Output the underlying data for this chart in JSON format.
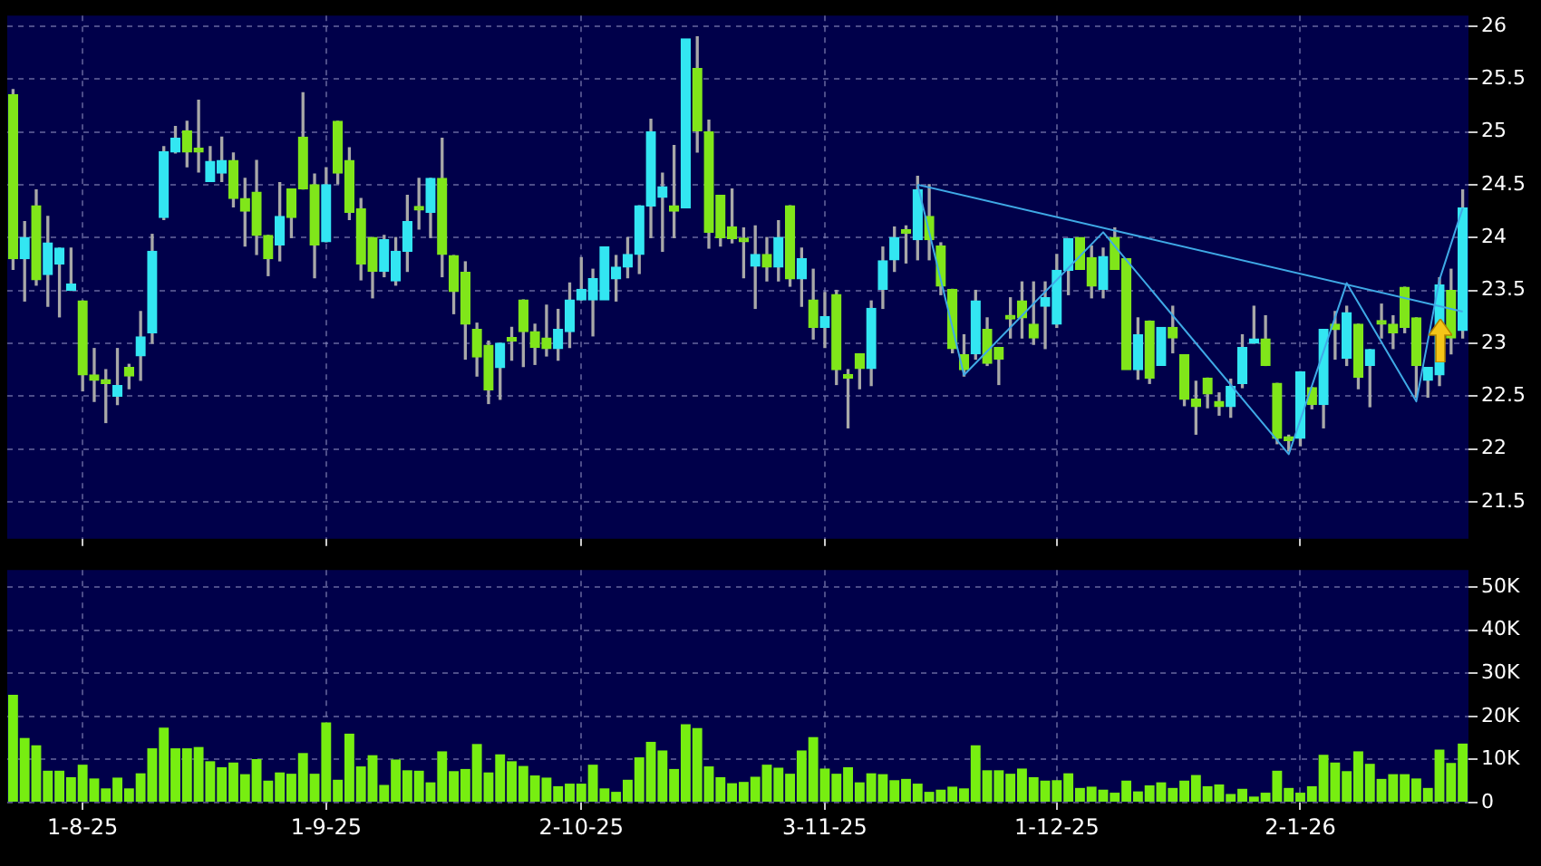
{
  "chart_data": [
    {
      "type": "candlestick",
      "categories": [
        null,
        null,
        null,
        null,
        null,
        null,
        null,
        null,
        null,
        null,
        null,
        null,
        null,
        null,
        null,
        null,
        null,
        null,
        null,
        null,
        null,
        null,
        null,
        null,
        null,
        null,
        null,
        null,
        null,
        null,
        null,
        null,
        null,
        null,
        null,
        null,
        null,
        null,
        null,
        null,
        null,
        null,
        null,
        null,
        null,
        null,
        null,
        null,
        null,
        null,
        null,
        null,
        null,
        null,
        null,
        null,
        null,
        null,
        null,
        null,
        null,
        null,
        null,
        null,
        null,
        null,
        null,
        null,
        null,
        null,
        null,
        null,
        null,
        null,
        null,
        null,
        null,
        null,
        null,
        null,
        null,
        null,
        null,
        null,
        null,
        null,
        null,
        null,
        null,
        null,
        null,
        null,
        null,
        null,
        null,
        null,
        null,
        null,
        null,
        null,
        null,
        null,
        null,
        null,
        null,
        null,
        null,
        null,
        null,
        null,
        null,
        null,
        null,
        null,
        null,
        null,
        null,
        null,
        null,
        null,
        null,
        null,
        null,
        null,
        null,
        null
      ],
      "ohlc": [
        [
          25.35,
          25.4,
          23.7,
          23.8
        ],
        [
          23.8,
          24.15,
          23.4,
          24.0
        ],
        [
          24.3,
          24.45,
          23.55,
          23.6
        ],
        [
          23.65,
          24.2,
          23.35,
          23.95
        ],
        [
          23.75,
          23.9,
          23.25,
          23.9
        ],
        [
          23.5,
          23.9,
          23.5,
          23.56
        ],
        [
          23.4,
          23.4,
          22.55,
          22.7
        ],
        [
          22.7,
          22.95,
          22.45,
          22.65
        ],
        [
          22.65,
          22.75,
          22.25,
          22.62
        ],
        [
          22.5,
          22.95,
          22.42,
          22.6
        ],
        [
          22.77,
          22.8,
          22.57,
          22.69
        ],
        [
          22.88,
          23.3,
          22.65,
          23.06
        ],
        [
          23.1,
          24.03,
          23.0,
          23.87
        ],
        [
          24.19,
          24.86,
          24.17,
          24.81
        ],
        [
          24.81,
          25.05,
          24.8,
          24.94
        ],
        [
          25.01,
          25.1,
          24.67,
          24.81
        ],
        [
          24.81,
          25.3,
          24.62,
          24.81
        ],
        [
          24.53,
          24.86,
          24.53,
          24.72
        ],
        [
          24.61,
          24.95,
          24.53,
          24.73
        ],
        [
          24.73,
          24.8,
          24.29,
          24.37
        ],
        [
          24.37,
          24.56,
          23.92,
          24.25
        ],
        [
          24.43,
          24.73,
          23.84,
          24.02
        ],
        [
          24.02,
          24.02,
          23.64,
          23.8
        ],
        [
          23.93,
          24.52,
          23.78,
          24.2
        ],
        [
          24.46,
          24.46,
          24.0,
          24.19
        ],
        [
          24.95,
          25.37,
          24.46,
          24.46
        ],
        [
          24.5,
          24.6,
          23.62,
          23.93
        ],
        [
          23.96,
          24.66,
          23.96,
          24.5
        ],
        [
          25.1,
          25.1,
          24.51,
          24.61
        ],
        [
          24.73,
          24.85,
          24.17,
          24.24
        ],
        [
          24.27,
          24.37,
          23.6,
          23.75
        ],
        [
          24.0,
          24.0,
          23.43,
          23.68
        ],
        [
          23.68,
          24.02,
          23.63,
          23.98
        ],
        [
          23.59,
          24.0,
          23.55,
          23.87
        ],
        [
          23.87,
          24.4,
          23.68,
          24.15
        ],
        [
          24.26,
          24.56,
          24.08,
          24.26
        ],
        [
          24.24,
          24.56,
          24.0,
          24.56
        ],
        [
          24.56,
          24.94,
          23.63,
          23.84
        ],
        [
          23.83,
          23.83,
          23.28,
          23.49
        ],
        [
          23.67,
          23.77,
          22.85,
          23.18
        ],
        [
          23.13,
          23.19,
          22.69,
          22.87
        ],
        [
          22.98,
          23.02,
          22.43,
          22.56
        ],
        [
          22.77,
          23.0,
          22.47,
          23.0
        ],
        [
          23.02,
          23.15,
          22.84,
          23.02
        ],
        [
          23.41,
          23.41,
          22.78,
          23.11
        ],
        [
          23.11,
          23.18,
          22.8,
          22.96
        ],
        [
          23.05,
          23.36,
          22.88,
          22.95
        ],
        [
          22.95,
          23.32,
          22.84,
          23.13
        ],
        [
          23.11,
          23.57,
          22.96,
          23.41
        ],
        [
          23.41,
          23.81,
          23.41,
          23.51
        ],
        [
          23.41,
          23.7,
          23.07,
          23.61
        ],
        [
          23.41,
          23.91,
          23.41,
          23.91
        ],
        [
          23.61,
          23.83,
          23.4,
          23.72
        ],
        [
          23.72,
          24.0,
          23.62,
          23.84
        ],
        [
          23.84,
          24.3,
          23.66,
          24.3
        ],
        [
          24.3,
          25.12,
          24.0,
          25.0
        ],
        [
          24.38,
          24.61,
          23.87,
          24.48
        ],
        [
          24.3,
          24.87,
          24.0,
          24.25
        ],
        [
          24.28,
          25.88,
          24.28,
          25.88
        ],
        [
          25.6,
          25.9,
          24.81,
          25.01
        ],
        [
          25.0,
          25.11,
          23.9,
          24.05
        ],
        [
          24.4,
          24.4,
          23.92,
          24.0
        ],
        [
          24.1,
          24.46,
          23.95,
          23.99
        ],
        [
          23.96,
          24.09,
          23.62,
          23.96
        ],
        [
          23.73,
          24.11,
          23.33,
          23.84
        ],
        [
          23.84,
          24.0,
          23.59,
          23.72
        ],
        [
          23.72,
          24.16,
          23.59,
          24.0
        ],
        [
          24.3,
          24.3,
          23.54,
          23.61
        ],
        [
          23.61,
          23.9,
          23.35,
          23.8
        ],
        [
          23.41,
          23.7,
          23.04,
          23.15
        ],
        [
          23.15,
          23.48,
          22.96,
          23.25
        ],
        [
          23.46,
          23.5,
          22.61,
          22.75
        ],
        [
          22.67,
          22.75,
          22.2,
          22.67
        ],
        [
          22.9,
          22.9,
          22.57,
          22.76
        ],
        [
          22.76,
          23.4,
          22.6,
          23.33
        ],
        [
          23.51,
          23.91,
          23.33,
          23.78
        ],
        [
          23.79,
          24.1,
          23.68,
          24.0
        ],
        [
          24.04,
          24.11,
          23.76,
          24.04
        ],
        [
          23.98,
          24.58,
          23.79,
          24.45
        ],
        [
          24.2,
          24.5,
          23.79,
          23.98
        ],
        [
          23.92,
          23.95,
          23.46,
          23.54
        ],
        [
          23.51,
          23.51,
          22.91,
          22.95
        ],
        [
          22.89,
          23.08,
          22.69,
          22.75
        ],
        [
          22.9,
          23.5,
          22.85,
          23.4
        ],
        [
          23.13,
          23.24,
          22.79,
          22.81
        ],
        [
          22.96,
          22.96,
          22.61,
          22.85
        ],
        [
          23.23,
          23.43,
          23.05,
          23.23
        ],
        [
          23.4,
          23.58,
          23.05,
          23.24
        ],
        [
          23.18,
          23.58,
          22.99,
          23.05
        ],
        [
          23.35,
          23.58,
          22.95,
          23.43
        ],
        [
          23.18,
          23.84,
          23.15,
          23.69
        ],
        [
          23.69,
          23.99,
          23.46,
          23.99
        ],
        [
          24.0,
          24.0,
          23.7,
          23.7
        ],
        [
          23.81,
          23.92,
          23.43,
          23.54
        ],
        [
          23.51,
          23.9,
          23.43,
          23.82
        ],
        [
          24.0,
          24.09,
          23.7,
          23.7
        ],
        [
          23.8,
          23.8,
          22.75,
          22.75
        ],
        [
          22.75,
          23.24,
          22.66,
          23.08
        ],
        [
          23.21,
          23.21,
          22.62,
          22.67
        ],
        [
          22.79,
          23.15,
          22.79,
          23.15
        ],
        [
          23.15,
          23.35,
          22.91,
          23.05
        ],
        [
          22.89,
          22.89,
          22.41,
          22.47
        ],
        [
          22.47,
          22.64,
          22.14,
          22.4
        ],
        [
          22.67,
          22.67,
          22.39,
          22.52
        ],
        [
          22.45,
          22.53,
          22.32,
          22.4
        ],
        [
          22.4,
          22.66,
          22.3,
          22.59
        ],
        [
          22.62,
          23.08,
          22.58,
          22.96
        ],
        [
          23.0,
          23.35,
          23.0,
          23.04
        ],
        [
          23.04,
          23.26,
          22.79,
          22.79
        ],
        [
          22.62,
          22.62,
          22.05,
          22.1
        ],
        [
          22.1,
          22.13,
          21.98,
          22.08
        ],
        [
          22.1,
          22.73,
          22.03,
          22.73
        ],
        [
          22.58,
          22.58,
          22.38,
          22.42
        ],
        [
          22.42,
          23.13,
          22.2,
          23.13
        ],
        [
          23.18,
          23.3,
          22.85,
          23.13
        ],
        [
          22.86,
          23.35,
          22.79,
          23.29
        ],
        [
          23.18,
          23.18,
          22.57,
          22.68
        ],
        [
          22.79,
          22.94,
          22.4,
          22.94
        ],
        [
          23.18,
          23.37,
          23.05,
          23.18
        ],
        [
          23.18,
          23.26,
          22.95,
          23.1
        ],
        [
          23.53,
          23.53,
          23.1,
          23.15
        ],
        [
          23.24,
          23.24,
          22.49,
          22.79
        ],
        [
          22.65,
          22.77,
          22.49,
          22.77
        ],
        [
          22.7,
          23.62,
          22.6,
          23.55
        ],
        [
          23.5,
          23.7,
          22.9,
          23.05
        ],
        [
          23.12,
          24.45,
          23.05,
          24.28
        ]
      ],
      "colors": [
        "#80e61a",
        "#33e6f2",
        "#80e61a",
        "#33e6f2",
        "#33e6f2",
        "#33e6f2",
        "#80e61a",
        "#80e61a",
        "#80e61a",
        "#33e6f2",
        "#80e61a",
        "#33e6f2",
        "#33e6f2",
        "#33e6f2",
        "#33e6f2",
        "#80e61a",
        "#80e61a",
        "#33e6f2",
        "#33e6f2",
        "#80e61a",
        "#80e61a",
        "#80e61a",
        "#80e61a",
        "#33e6f2",
        "#80e61a",
        "#80e61a",
        "#80e61a",
        "#33e6f2",
        "#80e61a",
        "#80e61a",
        "#80e61a",
        "#80e61a",
        "#33e6f2",
        "#33e6f2",
        "#33e6f2",
        "#80e61a",
        "#33e6f2",
        "#80e61a",
        "#80e61a",
        "#80e61a",
        "#80e61a",
        "#80e61a",
        "#33e6f2",
        "#80e61a",
        "#80e61a",
        "#80e61a",
        "#80e61a",
        "#33e6f2",
        "#33e6f2",
        "#33e6f2",
        "#33e6f2",
        "#33e6f2",
        "#33e6f2",
        "#33e6f2",
        "#33e6f2",
        "#33e6f2",
        "#33e6f2",
        "#80e61a",
        "#33e6f2",
        "#80e61a",
        "#80e61a",
        "#80e61a",
        "#80e61a",
        "#80e61a",
        "#33e6f2",
        "#80e61a",
        "#33e6f2",
        "#80e61a",
        "#33e6f2",
        "#80e61a",
        "#33e6f2",
        "#80e61a",
        "#80e61a",
        "#80e61a",
        "#33e6f2",
        "#33e6f2",
        "#33e6f2",
        "#80e61a",
        "#33e6f2",
        "#80e61a",
        "#80e61a",
        "#80e61a",
        "#80e61a",
        "#33e6f2",
        "#80e61a",
        "#80e61a",
        "#80e61a",
        "#80e61a",
        "#80e61a",
        "#33e6f2",
        "#33e6f2",
        "#33e6f2",
        "#80e61a",
        "#80e61a",
        "#33e6f2",
        "#80e61a",
        "#80e61a",
        "#33e6f2",
        "#80e61a",
        "#33e6f2",
        "#80e61a",
        "#80e61a",
        "#80e61a",
        "#80e61a",
        "#80e61a",
        "#33e6f2",
        "#33e6f2",
        "#33e6f2",
        "#80e61a",
        "#80e61a",
        "#80e61a",
        "#33e6f2",
        "#80e61a",
        "#33e6f2",
        "#80e61a",
        "#33e6f2",
        "#80e61a",
        "#33e6f2",
        "#80e61a",
        "#80e61a",
        "#80e61a",
        "#80e61a",
        "#33e6f2",
        "#33e6f2",
        "#80e61a",
        "#33e6f2"
      ],
      "series": [
        {
          "type": "line",
          "color": "#3fa9e6",
          "values": [
            null,
            null,
            null,
            null,
            null,
            null,
            null,
            null,
            null,
            null,
            null,
            null,
            null,
            null,
            null,
            null,
            null,
            null,
            null,
            null,
            null,
            null,
            null,
            null,
            null,
            null,
            null,
            null,
            null,
            null,
            null,
            null,
            null,
            null,
            null,
            null,
            null,
            null,
            null,
            null,
            null,
            null,
            null,
            null,
            null,
            null,
            null,
            null,
            null,
            null,
            null,
            null,
            null,
            null,
            null,
            null,
            null,
            null,
            null,
            null,
            null,
            null,
            null,
            null,
            null,
            null,
            null,
            null,
            null,
            null,
            null,
            null,
            null,
            null,
            null,
            null,
            null,
            null,
            24.5,
            null,
            null,
            null,
            null,
            null,
            null,
            null,
            null,
            null,
            null,
            null,
            null,
            null,
            null,
            null,
            null,
            null,
            null,
            null,
            null,
            null,
            null,
            null,
            null,
            null,
            null,
            null,
            null,
            null,
            null,
            null,
            null,
            null,
            null,
            null,
            null,
            null,
            null,
            null,
            null,
            null,
            null,
            null,
            null,
            null,
            null,
            23.3
          ]
        },
        {
          "type": "line",
          "color": "#3fa9e6",
          "values": [
            null,
            null,
            null,
            null,
            null,
            null,
            null,
            null,
            null,
            null,
            null,
            null,
            null,
            null,
            null,
            null,
            null,
            null,
            null,
            null,
            null,
            null,
            null,
            null,
            null,
            null,
            null,
            null,
            null,
            null,
            null,
            null,
            null,
            null,
            null,
            null,
            null,
            null,
            null,
            null,
            null,
            null,
            null,
            null,
            null,
            null,
            null,
            null,
            null,
            null,
            null,
            null,
            null,
            null,
            null,
            null,
            null,
            null,
            null,
            null,
            null,
            null,
            null,
            null,
            null,
            null,
            null,
            null,
            null,
            null,
            null,
            null,
            null,
            null,
            null,
            null,
            null,
            null,
            24.5,
            null,
            null,
            null,
            22.7,
            null,
            null,
            null,
            null,
            null,
            null,
            null,
            null,
            null,
            null,
            null,
            24.05,
            null,
            null,
            null,
            null,
            null,
            null,
            null,
            null,
            null,
            null,
            null,
            null,
            null,
            null,
            null,
            21.95,
            null,
            null,
            null,
            null,
            23.57,
            null,
            null,
            null,
            null,
            null,
            22.45,
            null,
            23.6,
            null,
            24.28
          ]
        }
      ],
      "ylim": [
        21.15,
        26.1
      ],
      "yticks": [
        21.5,
        22,
        22.5,
        23,
        23.5,
        24,
        24.5,
        25,
        25.5,
        26
      ],
      "grid": true,
      "tick_labels": "y"
    },
    {
      "type": "bar",
      "categories": [
        null,
        null,
        null,
        null,
        null,
        null,
        "1-8-25",
        null,
        null,
        null,
        null,
        null,
        null,
        null,
        null,
        null,
        null,
        null,
        null,
        null,
        null,
        null,
        null,
        null,
        null,
        null,
        null,
        "1-9-25",
        null,
        null,
        null,
        null,
        null,
        null,
        null,
        null,
        null,
        null,
        null,
        null,
        null,
        null,
        null,
        null,
        null,
        null,
        null,
        null,
        null,
        "2-10-25",
        null,
        null,
        null,
        null,
        null,
        null,
        null,
        null,
        null,
        null,
        null,
        null,
        null,
        null,
        null,
        null,
        null,
        null,
        null,
        null,
        "3-11-25",
        null,
        null,
        null,
        null,
        null,
        null,
        null,
        null,
        null,
        null,
        null,
        null,
        null,
        null,
        null,
        null,
        null,
        null,
        null,
        "1-12-25",
        null,
        null,
        null,
        null,
        null,
        null,
        null,
        null,
        null,
        null,
        null,
        null,
        null,
        null,
        null,
        null,
        null,
        null,
        null,
        null,
        "2-1-26",
        null,
        null,
        null,
        null,
        null,
        null,
        null,
        null,
        null,
        null,
        null,
        null,
        null,
        null
      ],
      "values": [
        25000,
        15000,
        13300,
        7400,
        7400,
        5900,
        8800,
        5600,
        3300,
        5800,
        3300,
        6800,
        12600,
        17400,
        12600,
        12600,
        12900,
        9600,
        8200,
        9300,
        6600,
        10100,
        5100,
        7000,
        6700,
        11500,
        6700,
        18600,
        5300,
        16000,
        8400,
        11000,
        4100,
        10000,
        7500,
        7400,
        4700,
        11900,
        7300,
        7800,
        13600,
        7000,
        11200,
        9600,
        8500,
        6300,
        5800,
        3800,
        4400,
        4400,
        8800,
        3300,
        2500,
        5300,
        10500,
        14100,
        12100,
        7800,
        18200,
        17300,
        8400,
        5900,
        4500,
        4800,
        6000,
        8800,
        8100,
        6700,
        12100,
        15200,
        7900,
        6700,
        8200,
        4700,
        6800,
        6600,
        5200,
        5500,
        4400,
        2500,
        3000,
        3700,
        3300,
        13300,
        7500,
        7500,
        6700,
        7900,
        5900,
        5100,
        5200,
        6800,
        3400,
        3700,
        3000,
        2300,
        5100,
        2600,
        4000,
        4700,
        3400,
        5100,
        6400,
        3800,
        4200,
        2000,
        3200,
        1400,
        2300,
        7400,
        3400,
        2300,
        3800,
        11100,
        9300,
        7300,
        11900,
        9000,
        5500,
        6600,
        6600,
        5600,
        3400,
        12300,
        9200,
        13700
      ],
      "color": "#77ee11",
      "ylim": [
        0,
        54000
      ],
      "yticks": [
        0,
        {
          "value": 10000,
          "label": "10K"
        },
        {
          "value": 20000,
          "label": "20K"
        },
        {
          "value": 30000,
          "label": "30K"
        },
        {
          "value": 40000,
          "label": "40K"
        },
        {
          "value": 50000,
          "label": "50K"
        }
      ],
      "grid": true
    }
  ]
}
